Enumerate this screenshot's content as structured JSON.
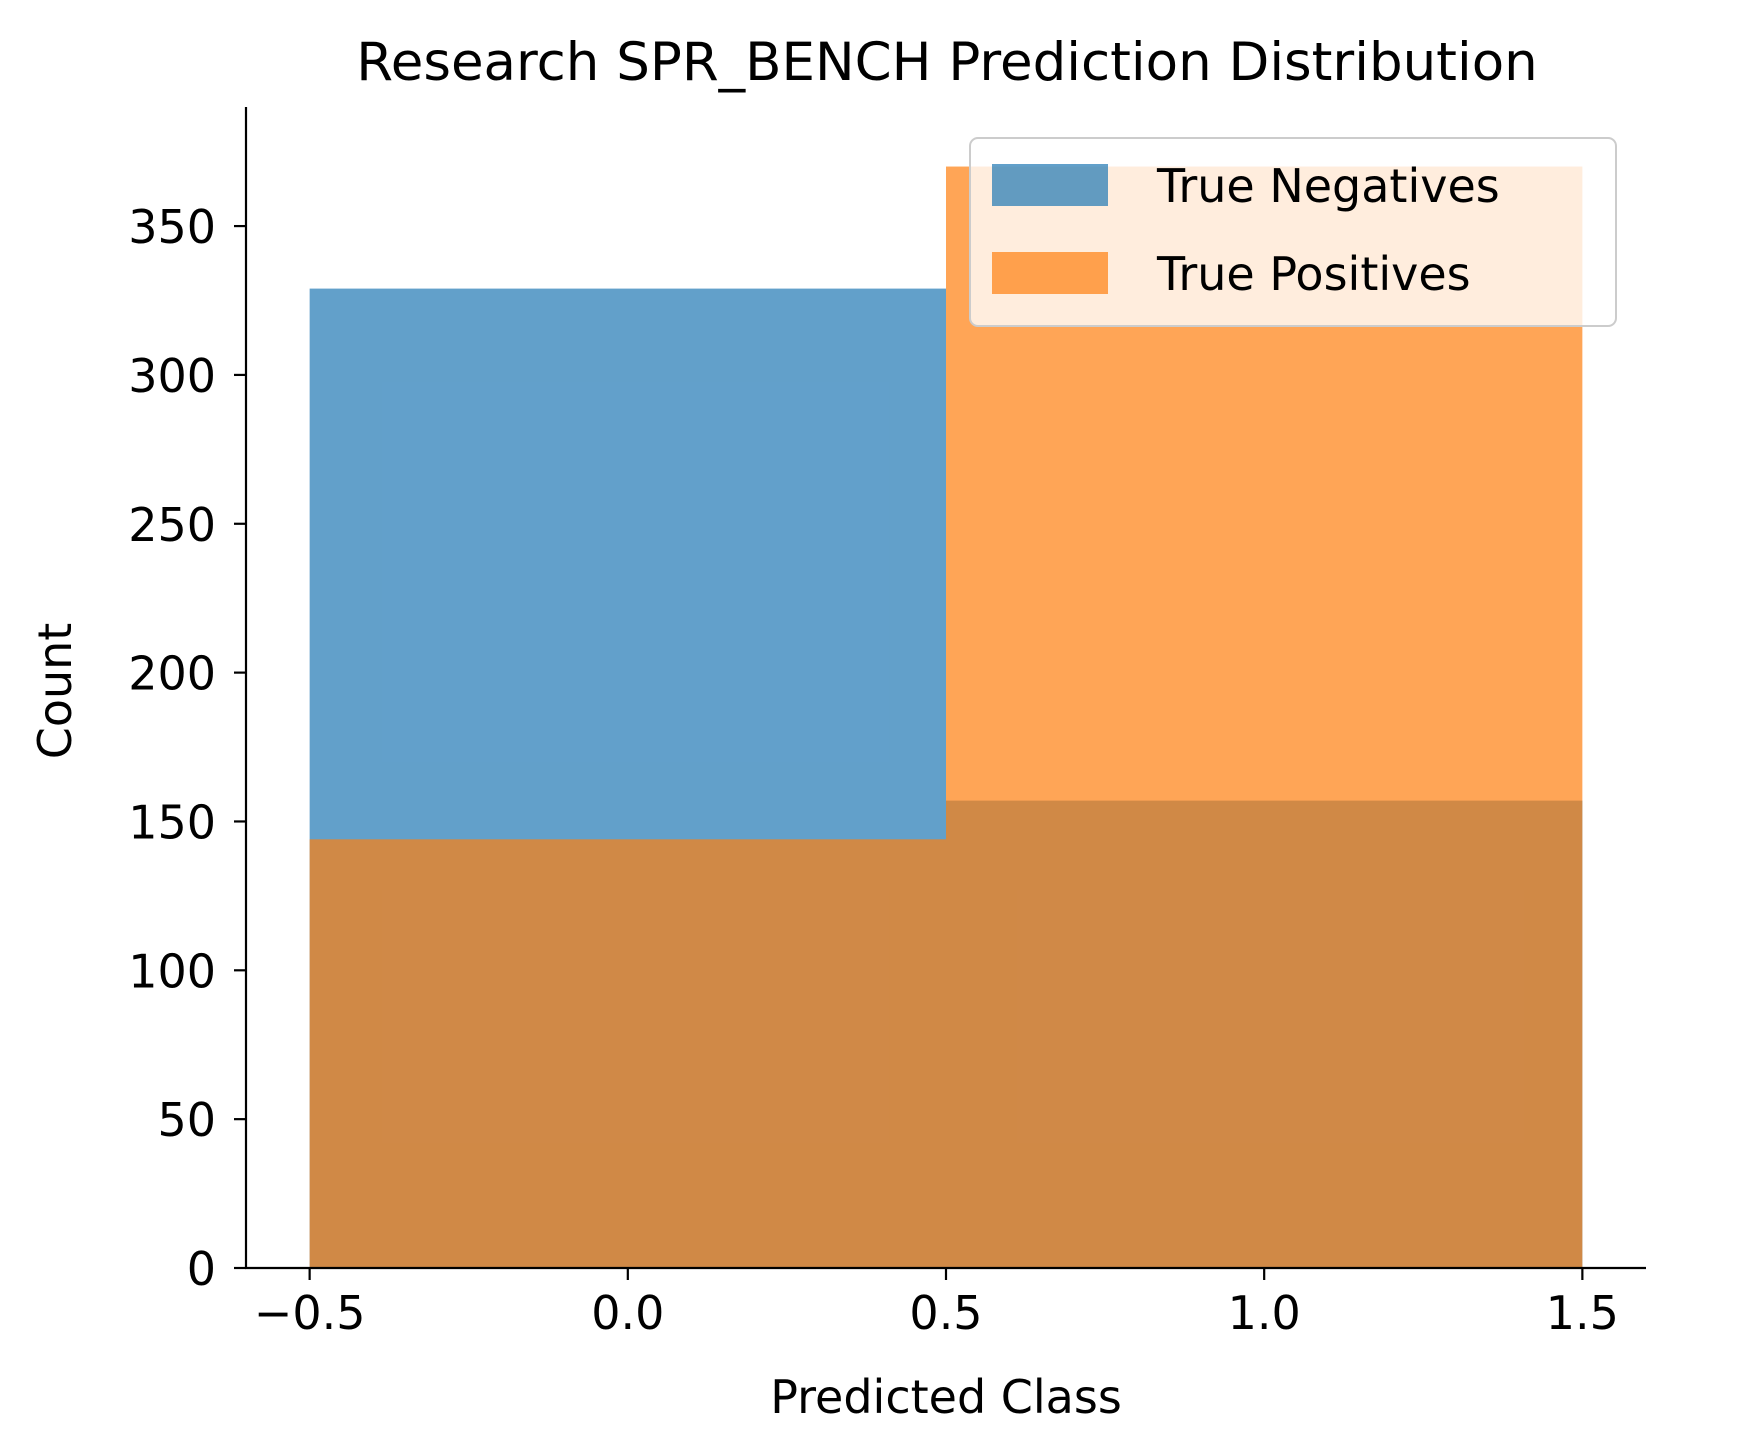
{
  "chart_data": {
    "type": "bar",
    "title": "Research SPR_BENCH Prediction Distribution",
    "xlabel": "Predicted Class",
    "ylabel": "Count",
    "xlim": [
      -0.6,
      1.6
    ],
    "ylim": [
      0,
      390
    ],
    "x_ticks": [
      -0.5,
      0.0,
      0.5,
      1.0,
      1.5
    ],
    "x_tick_labels": [
      "−0.5",
      "0.0",
      "0.5",
      "1.0",
      "1.5"
    ],
    "y_ticks": [
      0,
      50,
      100,
      150,
      200,
      250,
      300,
      350
    ],
    "y_tick_labels": [
      "0",
      "50",
      "100",
      "150",
      "200",
      "250",
      "300",
      "350"
    ],
    "bin_edges": [
      -0.5,
      0.5,
      1.5
    ],
    "series": [
      {
        "name": "True Negatives",
        "color": "#1f77b4",
        "opacity": 0.7,
        "values": [
          329,
          157
        ]
      },
      {
        "name": "True Positives",
        "color": "#ff7f0e",
        "opacity": 0.7,
        "values": [
          144,
          370
        ]
      }
    ],
    "legend": {
      "position": "top-right",
      "entries": [
        "True Negatives",
        "True Positives"
      ]
    },
    "grid": false
  }
}
